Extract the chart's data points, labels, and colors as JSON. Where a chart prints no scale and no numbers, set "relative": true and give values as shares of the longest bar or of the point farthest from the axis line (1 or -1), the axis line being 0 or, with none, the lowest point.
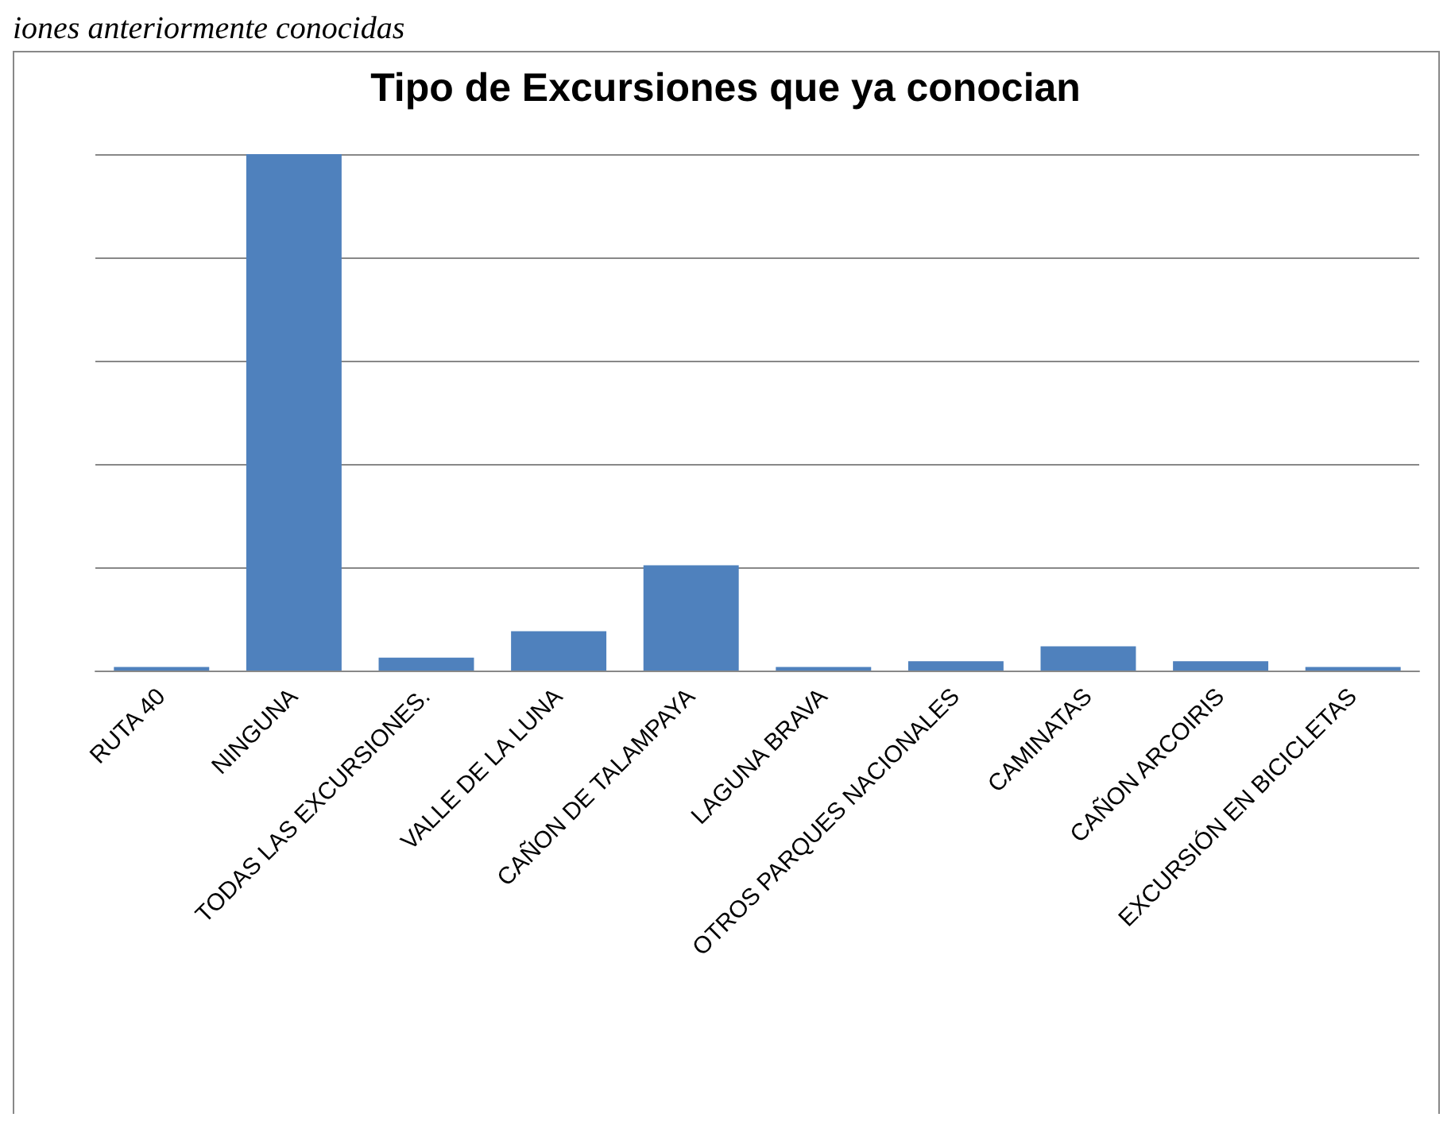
{
  "chart_data": {
    "type": "bar",
    "title": "Tipo de Excursiones que ya conocian",
    "annotations": [
      "iones anteriormente conocidas"
    ],
    "categories": [
      "RUTA 40",
      "NINGUNA",
      "TODAS LAS EXCURSIONES.",
      "VALLE DE LA LUNA",
      "CAÑON DE TALAMPAYA",
      "LAGUNA BRAVA",
      "OTROS PARQUES NACIONALES",
      "CAMINATAS",
      "CAÑON ARCOIRIS",
      "EXCURSIÓN EN BICICLETAS"
    ],
    "values": [
      0.007,
      1,
      0.025,
      0.076,
      0.204,
      0.007,
      0.018,
      0.047,
      0.018,
      0.007
    ],
    "color": "#4f81bd",
    "relative": true,
    "grid": "y"
  }
}
